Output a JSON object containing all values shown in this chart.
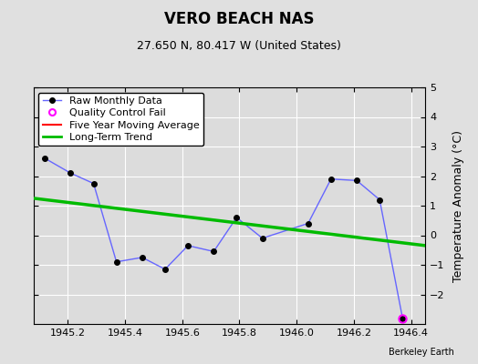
{
  "title": "VERO BEACH NAS",
  "subtitle": "27.650 N, 80.417 W (United States)",
  "watermark": "Berkeley Earth",
  "ylabel": "Temperature Anomaly (°C)",
  "xlim": [
    1945.08,
    1946.45
  ],
  "ylim": [
    -3,
    5
  ],
  "yticks": [
    -2,
    -1,
    0,
    1,
    2,
    3,
    4,
    5
  ],
  "xticks": [
    1945.2,
    1945.4,
    1945.6,
    1945.8,
    1946.0,
    1946.2,
    1946.4
  ],
  "background_color": "#e0e0e0",
  "plot_bg_color": "#dcdcdc",
  "raw_x": [
    1945.12,
    1945.21,
    1945.29,
    1945.37,
    1945.46,
    1945.54,
    1945.62,
    1945.71,
    1945.79,
    1945.88,
    1946.04,
    1946.12,
    1946.21,
    1946.29,
    1946.37
  ],
  "raw_y": [
    2.6,
    2.1,
    1.75,
    -0.9,
    -0.75,
    -1.15,
    -0.35,
    -0.55,
    0.6,
    -0.1,
    0.4,
    1.9,
    1.85,
    1.2,
    -2.8
  ],
  "qc_fail_x": [
    1946.37
  ],
  "qc_fail_y": [
    -2.8
  ],
  "trend_x": [
    1945.08,
    1946.45
  ],
  "trend_y": [
    1.25,
    -0.35
  ],
  "moving_avg_x": [],
  "moving_avg_y": [],
  "raw_line_color": "#6666ff",
  "raw_marker_color": "#000000",
  "raw_marker_size": 4,
  "qc_fail_color": "#ff00ff",
  "moving_avg_color": "#ff0000",
  "trend_color": "#00bb00",
  "trend_linewidth": 2.5,
  "raw_linewidth": 1.0,
  "grid_color": "#ffffff",
  "title_fontsize": 12,
  "subtitle_fontsize": 9,
  "axis_fontsize": 9,
  "tick_fontsize": 8,
  "legend_fontsize": 8
}
